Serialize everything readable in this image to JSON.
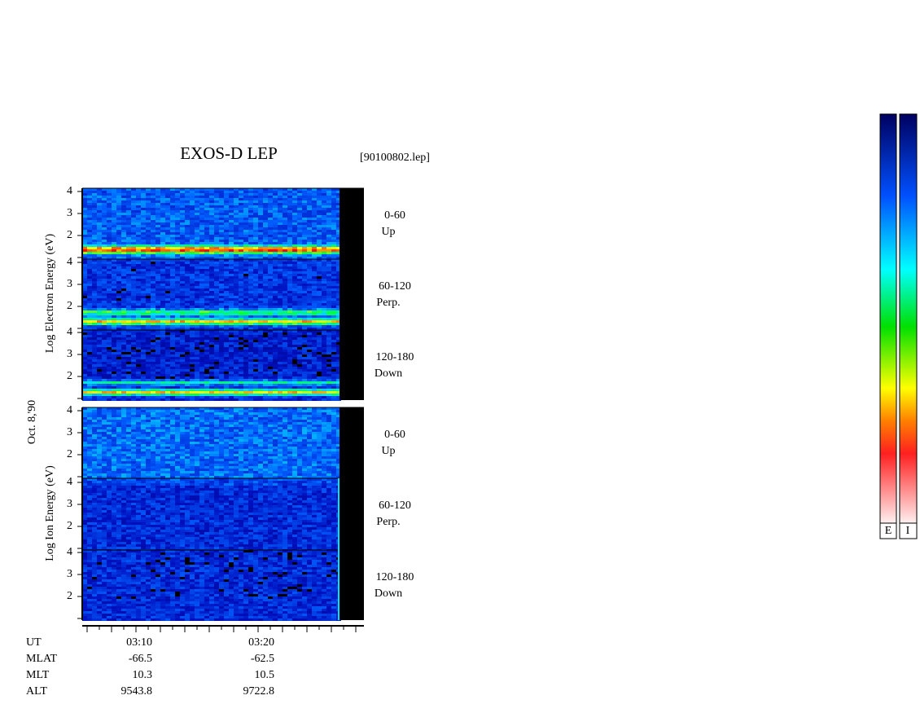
{
  "title": "EXOS-D LEP",
  "file": "[90100802.lep]",
  "date_label": "Oct. 8,'90",
  "electron_axis_label": "Log  Electron  Energy (eV)",
  "ion_axis_label": "Log  Ion  Energy (eV)",
  "energy_ticks": [
    2,
    3,
    4
  ],
  "electron_panels": [
    {
      "pitch": "0-60",
      "direction": "Up"
    },
    {
      "pitch": "60-120",
      "direction": "Perp."
    },
    {
      "pitch": "120-180",
      "direction": "Down"
    }
  ],
  "ion_panels": [
    {
      "pitch": "0-60",
      "direction": "Up"
    },
    {
      "pitch": "60-120",
      "direction": "Perp."
    },
    {
      "pitch": "120-180",
      "direction": "Down"
    }
  ],
  "time_axis": [
    {
      "label": "UT",
      "values": [
        "03:10",
        "03:20"
      ]
    },
    {
      "label": "MLAT",
      "values": [
        -66.5,
        -62.5
      ]
    },
    {
      "label": "MLT",
      "values": [
        10.3,
        10.5
      ]
    },
    {
      "label": "ALT",
      "values": [
        9543.8,
        9722.8
      ]
    }
  ],
  "colorbar_labels": [
    "E",
    "I"
  ]
}
